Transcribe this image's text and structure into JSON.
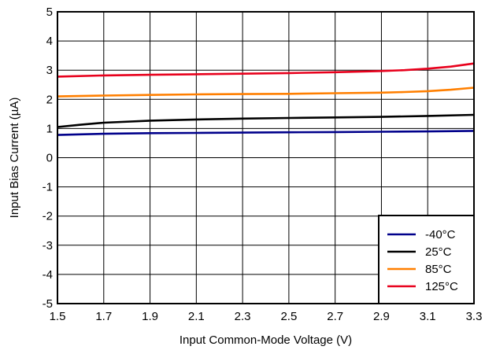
{
  "chart_data": {
    "type": "line",
    "xlabel": "Input Common-Mode Voltage (V)",
    "ylabel": "Input Bias Current (µA)",
    "xlim": [
      1.5,
      3.3
    ],
    "ylim": [
      -5,
      5
    ],
    "x_ticks": [
      "1.5",
      "1.7",
      "1.9",
      "2.1",
      "2.3",
      "2.5",
      "2.7",
      "2.9",
      "3.1",
      "3.3"
    ],
    "y_ticks": [
      "5",
      "4",
      "3",
      "2",
      "1",
      "0",
      "-1",
      "-2",
      "-3",
      "-4",
      "-5"
    ],
    "grid": true,
    "legend_position": "bottom-right",
    "series": [
      {
        "name": "-40°C",
        "color": "#00008b",
        "x": [
          1.5,
          1.6,
          1.7,
          1.9,
          2.1,
          2.3,
          2.5,
          2.7,
          2.9,
          3.1,
          3.3
        ],
        "y": [
          0.78,
          0.8,
          0.82,
          0.84,
          0.85,
          0.86,
          0.87,
          0.88,
          0.89,
          0.9,
          0.92
        ]
      },
      {
        "name": "25°C",
        "color": "#000000",
        "x": [
          1.5,
          1.6,
          1.7,
          1.9,
          2.1,
          2.3,
          2.5,
          2.7,
          2.9,
          3.1,
          3.3
        ],
        "y": [
          1.05,
          1.13,
          1.2,
          1.27,
          1.31,
          1.34,
          1.36,
          1.38,
          1.4,
          1.43,
          1.47
        ]
      },
      {
        "name": "85°C",
        "color": "#ff7f00",
        "x": [
          1.5,
          1.7,
          1.9,
          2.1,
          2.3,
          2.5,
          2.7,
          2.9,
          3.0,
          3.1,
          3.2,
          3.3
        ],
        "y": [
          2.1,
          2.13,
          2.15,
          2.17,
          2.18,
          2.19,
          2.21,
          2.23,
          2.25,
          2.28,
          2.33,
          2.4
        ]
      },
      {
        "name": "125°C",
        "color": "#e8001c",
        "x": [
          1.5,
          1.7,
          1.9,
          2.1,
          2.3,
          2.5,
          2.7,
          2.9,
          3.0,
          3.1,
          3.2,
          3.3
        ],
        "y": [
          2.78,
          2.82,
          2.84,
          2.86,
          2.88,
          2.9,
          2.93,
          2.97,
          3.0,
          3.05,
          3.12,
          3.23
        ]
      }
    ]
  }
}
